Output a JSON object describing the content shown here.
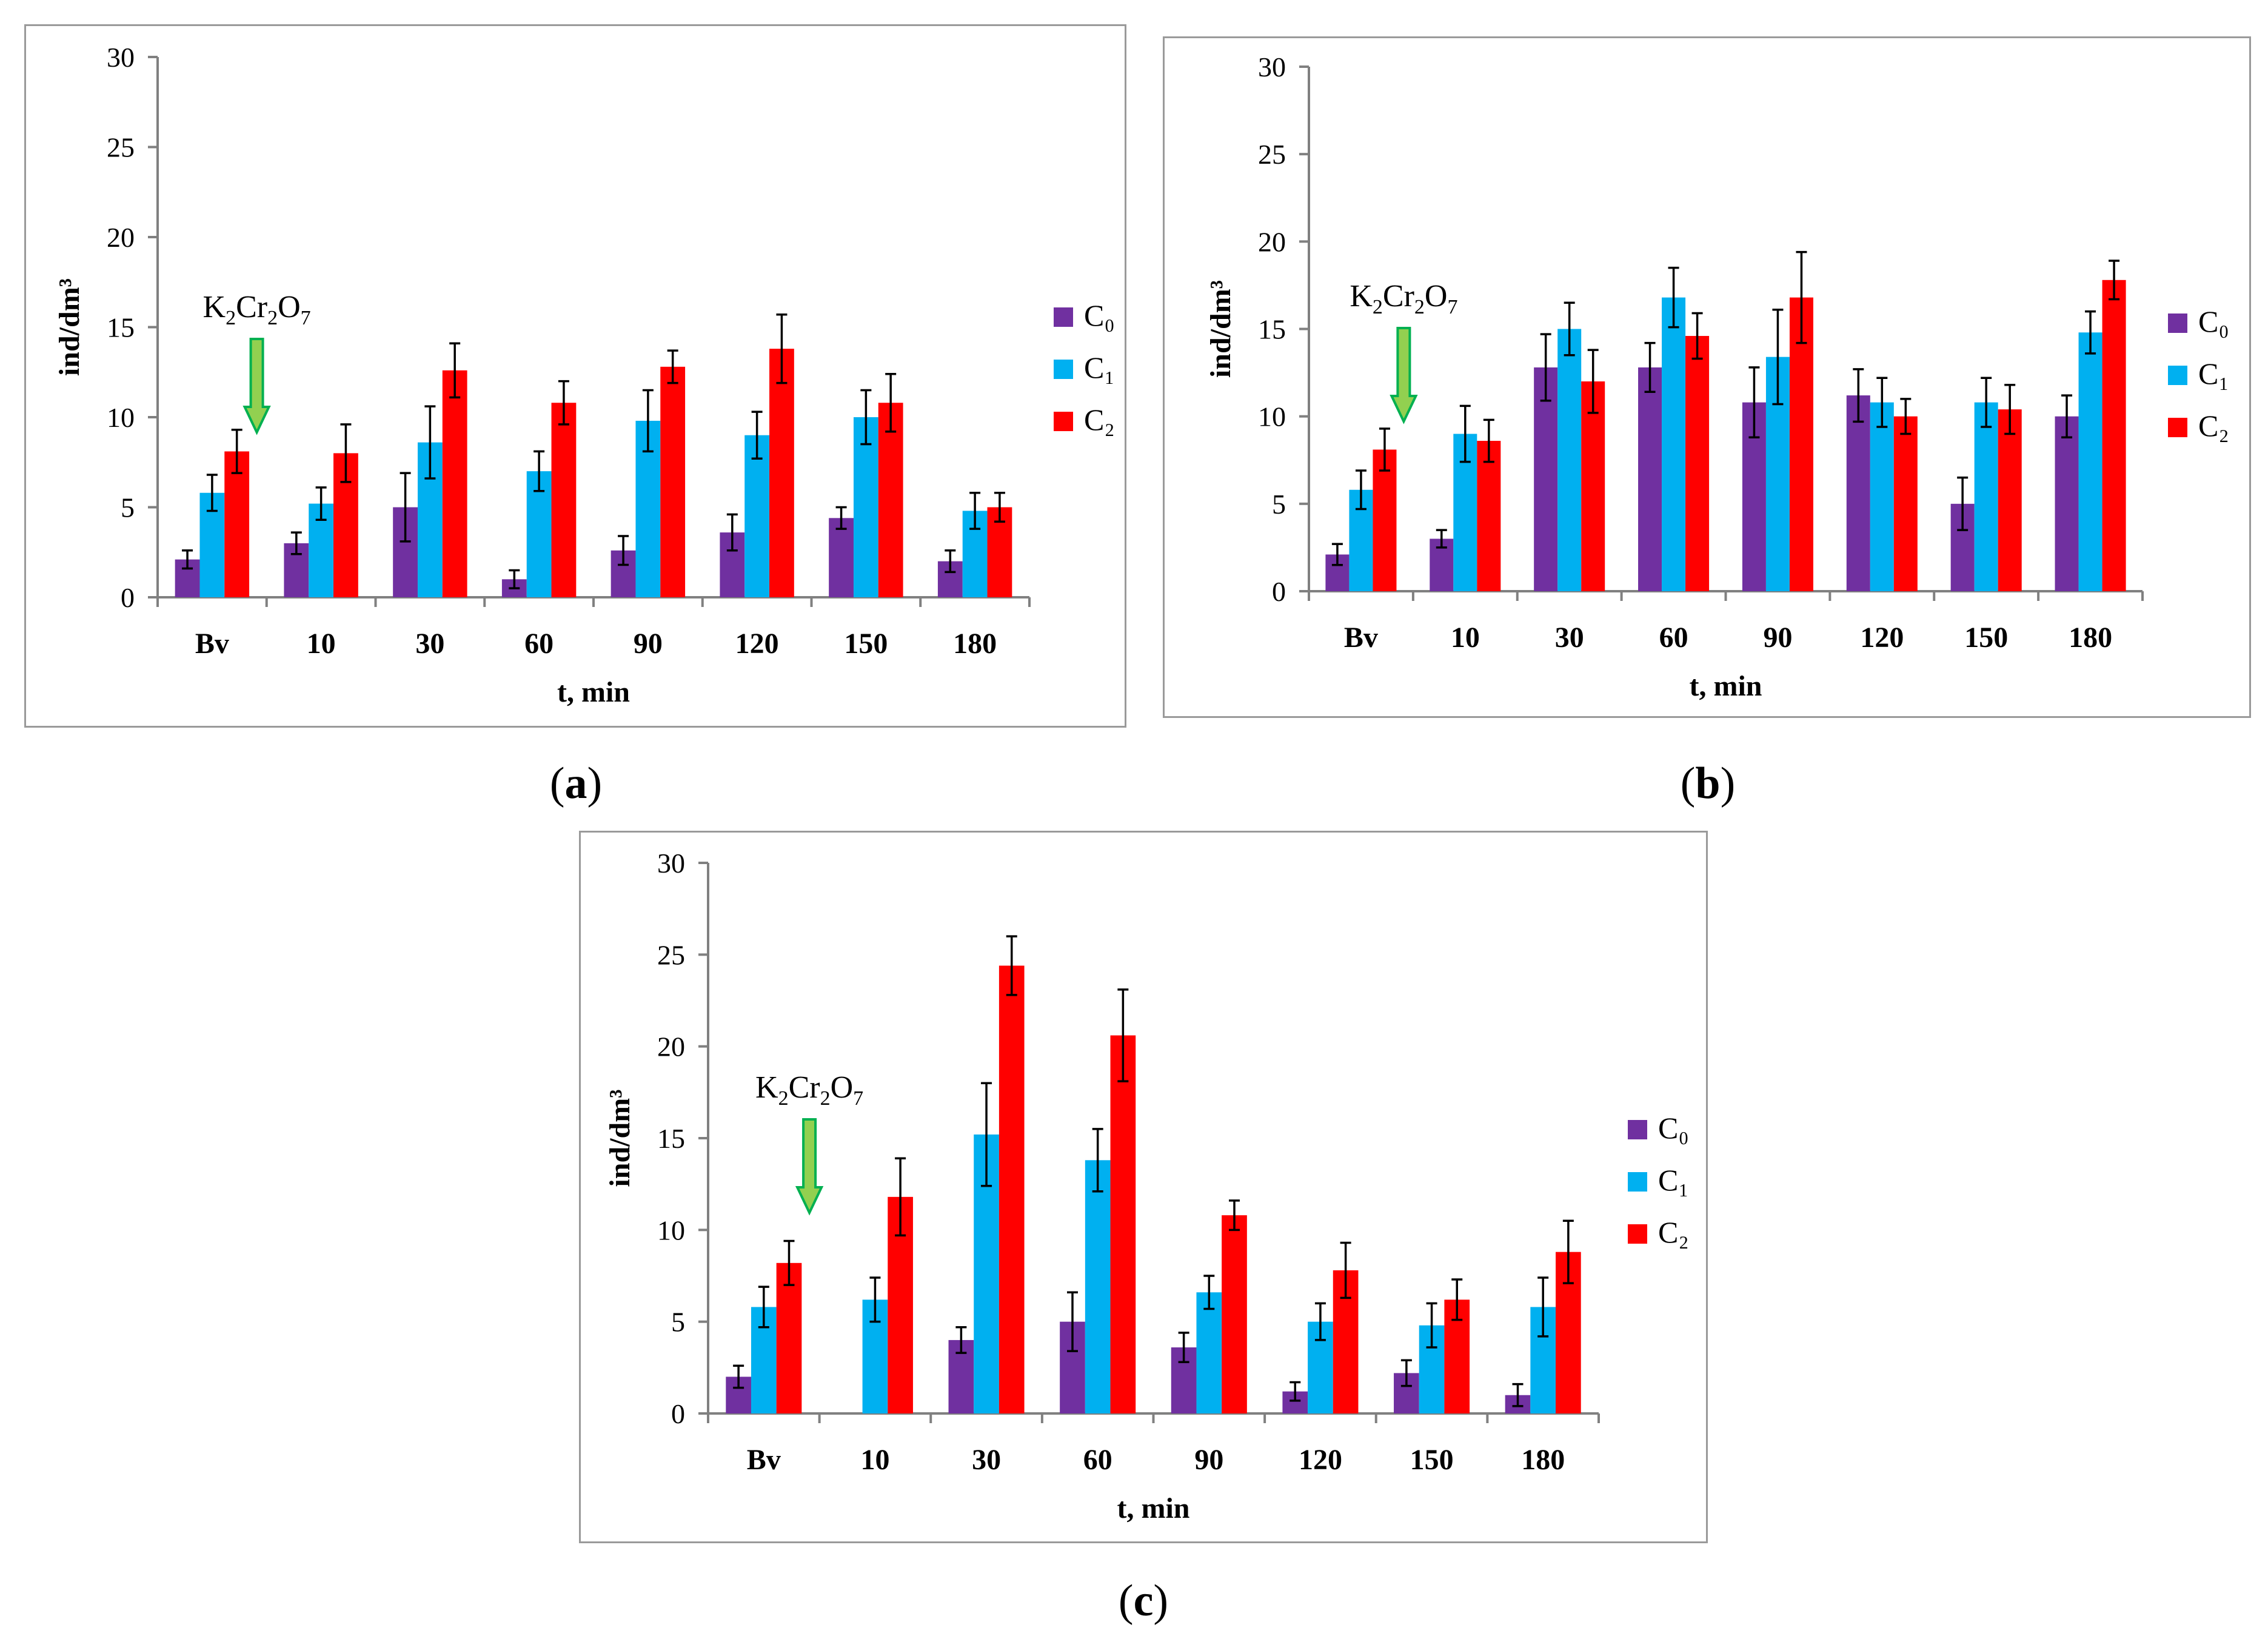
{
  "colors": {
    "C0": "#7030a0",
    "C1": "#00b0f0",
    "C2": "#ff0000",
    "arrow": "#92d050",
    "arrowEdge": "#00b050"
  },
  "chart_data": [
    {
      "id": "a",
      "type": "bar",
      "caption": "a",
      "title": "",
      "xlabel": "t, min",
      "ylabel": "ind/dm³",
      "ylim": [
        0,
        30
      ],
      "yticks": [
        0,
        5,
        10,
        15,
        20,
        25,
        30
      ],
      "categories": [
        "Bv",
        "10",
        "30",
        "60",
        "90",
        "120",
        "150",
        "180"
      ],
      "annotation": {
        "text_main": "K",
        "sub1": "2",
        "text_mid": "Cr",
        "sub2": "2",
        "text_end": "O",
        "sub3": "7"
      },
      "series": [
        {
          "name": "C₀",
          "values": [
            2.1,
            3.0,
            5.0,
            1.0,
            2.6,
            3.6,
            4.4,
            2.0
          ],
          "errors": [
            0.5,
            0.6,
            1.9,
            0.5,
            0.8,
            1.0,
            0.6,
            0.6
          ]
        },
        {
          "name": "C₁",
          "values": [
            5.8,
            5.2,
            8.6,
            7.0,
            9.8,
            9.0,
            10.0,
            4.8
          ],
          "errors": [
            1.0,
            0.9,
            2.0,
            1.1,
            1.7,
            1.3,
            1.5,
            1.0
          ]
        },
        {
          "name": "C₂",
          "values": [
            8.1,
            8.0,
            12.6,
            10.8,
            12.8,
            13.8,
            10.8,
            5.0
          ],
          "errors": [
            1.2,
            1.6,
            1.5,
            1.2,
            0.9,
            1.9,
            1.6,
            0.8
          ]
        }
      ]
    },
    {
      "id": "b",
      "type": "bar",
      "caption": "b",
      "title": "",
      "xlabel": "t, min",
      "ylabel": "ind/dm³",
      "ylim": [
        0,
        30
      ],
      "yticks": [
        0,
        5,
        10,
        15,
        20,
        25,
        30
      ],
      "categories": [
        "Bv",
        "10",
        "30",
        "60",
        "90",
        "120",
        "150",
        "180"
      ],
      "annotation": {
        "text_main": "K",
        "sub1": "2",
        "text_mid": "Cr",
        "sub2": "2",
        "text_end": "O",
        "sub3": "7"
      },
      "series": [
        {
          "name": "C₀",
          "values": [
            2.1,
            3.0,
            12.8,
            12.8,
            10.8,
            11.2,
            5.0,
            10.0
          ],
          "errors": [
            0.6,
            0.5,
            1.9,
            1.4,
            2.0,
            1.5,
            1.5,
            1.2
          ]
        },
        {
          "name": "C₁",
          "values": [
            5.8,
            9.0,
            15.0,
            16.8,
            13.4,
            10.8,
            10.8,
            14.8
          ],
          "errors": [
            1.1,
            1.6,
            1.5,
            1.7,
            2.7,
            1.4,
            1.4,
            1.2
          ]
        },
        {
          "name": "C₂",
          "values": [
            8.1,
            8.6,
            12.0,
            14.6,
            16.8,
            10.0,
            10.4,
            17.8
          ],
          "errors": [
            1.2,
            1.2,
            1.8,
            1.3,
            2.6,
            1.0,
            1.4,
            1.1
          ]
        }
      ]
    },
    {
      "id": "c",
      "type": "bar",
      "caption": "c",
      "title": "",
      "xlabel": "t, min",
      "ylabel": "ind/dm³",
      "ylim": [
        0,
        30
      ],
      "yticks": [
        0,
        5,
        10,
        15,
        20,
        25,
        30
      ],
      "categories": [
        "Bv",
        "10",
        "30",
        "60",
        "90",
        "120",
        "150",
        "180"
      ],
      "annotation": {
        "text_main": "K",
        "sub1": "2",
        "text_mid": "Cr",
        "sub2": "2",
        "text_end": "O",
        "sub3": "7"
      },
      "series": [
        {
          "name": "C₀",
          "values": [
            2.0,
            0,
            4.0,
            5.0,
            3.6,
            1.2,
            2.2,
            1.0
          ],
          "errors": [
            0.6,
            0,
            0.7,
            1.6,
            0.8,
            0.5,
            0.7,
            0.6
          ]
        },
        {
          "name": "C₁",
          "values": [
            5.8,
            6.2,
            15.2,
            13.8,
            6.6,
            5.0,
            4.8,
            5.8
          ],
          "errors": [
            1.1,
            1.2,
            2.8,
            1.7,
            0.9,
            1.0,
            1.2,
            1.6
          ]
        },
        {
          "name": "C₂",
          "values": [
            8.2,
            11.8,
            24.4,
            20.6,
            10.8,
            7.8,
            6.2,
            8.8
          ],
          "errors": [
            1.2,
            2.1,
            1.6,
            2.5,
            0.8,
            1.5,
            1.1,
            1.7
          ]
        }
      ]
    }
  ]
}
